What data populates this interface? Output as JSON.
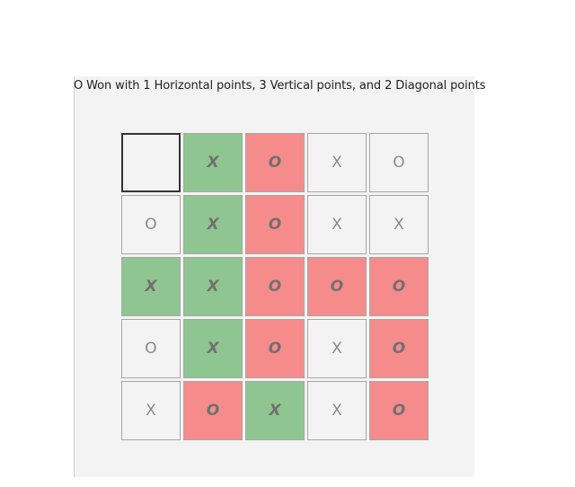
{
  "status_message": "O Won with 1 Horizontal points, 3 Vertical points, and 2 Diagonal points",
  "colors": {
    "x_win": "#8fc590",
    "o_win": "#f58c8b",
    "empty": "#f3f3f3"
  },
  "board": [
    [
      {
        "mark": "",
        "highlight": "none",
        "focused": true
      },
      {
        "mark": "X",
        "highlight": "green"
      },
      {
        "mark": "O",
        "highlight": "red"
      },
      {
        "mark": "X",
        "highlight": "none"
      },
      {
        "mark": "O",
        "highlight": "none"
      }
    ],
    [
      {
        "mark": "O",
        "highlight": "none"
      },
      {
        "mark": "X",
        "highlight": "green"
      },
      {
        "mark": "O",
        "highlight": "red"
      },
      {
        "mark": "X",
        "highlight": "none"
      },
      {
        "mark": "X",
        "highlight": "none"
      }
    ],
    [
      {
        "mark": "X",
        "highlight": "green"
      },
      {
        "mark": "X",
        "highlight": "green"
      },
      {
        "mark": "O",
        "highlight": "red"
      },
      {
        "mark": "O",
        "highlight": "red"
      },
      {
        "mark": "O",
        "highlight": "red"
      }
    ],
    [
      {
        "mark": "O",
        "highlight": "none"
      },
      {
        "mark": "X",
        "highlight": "green"
      },
      {
        "mark": "O",
        "highlight": "red"
      },
      {
        "mark": "X",
        "highlight": "none"
      },
      {
        "mark": "O",
        "highlight": "red"
      }
    ],
    [
      {
        "mark": "X",
        "highlight": "none"
      },
      {
        "mark": "O",
        "highlight": "red"
      },
      {
        "mark": "X",
        "highlight": "green"
      },
      {
        "mark": "X",
        "highlight": "none"
      },
      {
        "mark": "O",
        "highlight": "red"
      }
    ]
  ]
}
